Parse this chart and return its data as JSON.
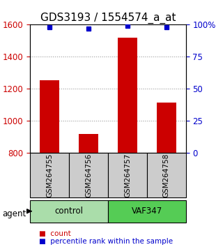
{
  "title": "GDS3193 / 1554574_a_at",
  "categories": [
    "GSM264755",
    "GSM264756",
    "GSM264757",
    "GSM264758"
  ],
  "bar_values": [
    1255,
    920,
    1520,
    1115
  ],
  "percentile_values": [
    98,
    97,
    99,
    98
  ],
  "ylim_left": [
    800,
    1600
  ],
  "ylim_right": [
    0,
    100
  ],
  "yticks_left": [
    800,
    1000,
    1200,
    1400,
    1600
  ],
  "yticks_right": [
    0,
    25,
    50,
    75,
    100
  ],
  "bar_color": "#cc0000",
  "dot_color": "#0000cc",
  "grid_color": "#999999",
  "agent_label": "agent",
  "groups": [
    {
      "label": "control",
      "indices": [
        0,
        1
      ],
      "color": "#aaddaa"
    },
    {
      "label": "VAF347",
      "indices": [
        2,
        3
      ],
      "color": "#55cc55"
    }
  ],
  "legend_items": [
    {
      "label": "count",
      "color": "#cc0000"
    },
    {
      "label": "percentile rank within the sample",
      "color": "#0000cc"
    }
  ],
  "title_fontsize": 11,
  "axis_fontsize": 9,
  "tick_fontsize": 8.5
}
